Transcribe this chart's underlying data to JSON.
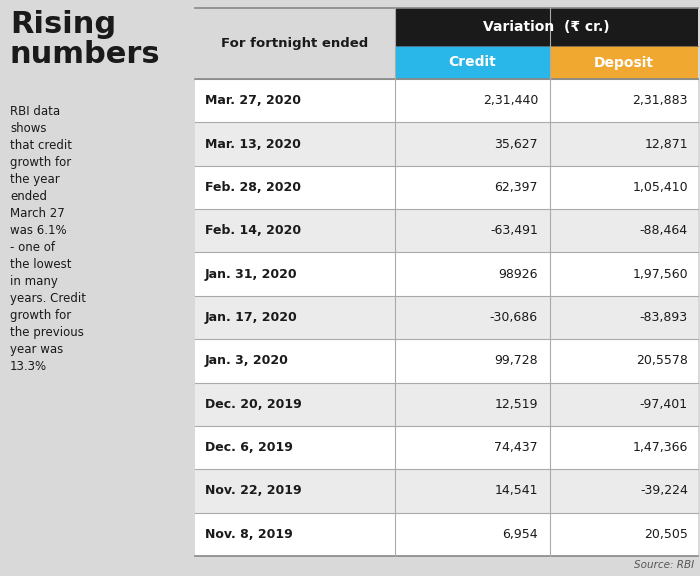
{
  "title": "Rising\nnumbers",
  "subtitle": "RBI data\nshows\nthat credit\ngrowth for\nthe year\nended\nMarch 27\nwas 6.1%\n- one of\nthe lowest\nin many\nyears. Credit\ngrowth for\nthe previous\nyear was\n13.3%",
  "col_header_top": "Variation  (₹ cr.)",
  "col_header_date": "For fortnight ended",
  "col_header_credit": "Credit",
  "col_header_deposit": "Deposit",
  "source": "Source: RBI",
  "rows": [
    {
      "date": "Mar. 27, 2020",
      "credit": "2,31,440",
      "deposit": "2,31,883"
    },
    {
      "date": "Mar. 13, 2020",
      "credit": "35,627",
      "deposit": "12,871"
    },
    {
      "date": "Feb. 28, 2020",
      "credit": "62,397",
      "deposit": "1,05,410"
    },
    {
      "date": "Feb. 14, 2020",
      "credit": "-63,491",
      "deposit": "-88,464"
    },
    {
      "date": "Jan. 31, 2020",
      "credit": "98926",
      "deposit": "1,97,560"
    },
    {
      "date": "Jan. 17, 2020",
      "credit": "-30,686",
      "deposit": "-83,893"
    },
    {
      "date": "Jan. 3, 2020",
      "credit": "99,728",
      "deposit": "20,5578"
    },
    {
      "date": "Dec. 20, 2019",
      "credit": "12,519",
      "deposit": "-97,401"
    },
    {
      "date": "Dec. 6, 2019",
      "credit": "74,437",
      "deposit": "1,47,366"
    },
    {
      "date": "Nov. 22, 2019",
      "credit": "14,541",
      "deposit": "-39,224"
    },
    {
      "date": "Nov. 8, 2019",
      "credit": "6,954",
      "deposit": "20,505"
    }
  ],
  "bg_color": "#d9d9d9",
  "header_top_bg": "#1a1a1a",
  "header_top_fg": "#ffffff",
  "credit_col_bg": "#29b6e8",
  "deposit_col_bg": "#f0a830",
  "col_header_fg": "#ffffff",
  "row_odd_bg": "#ebebeb",
  "row_even_bg": "#ffffff",
  "row_line_color": "#aaaaaa",
  "title_color": "#1a1a1a",
  "text_color": "#1a1a1a",
  "fig_width": 7.0,
  "fig_height": 5.76
}
